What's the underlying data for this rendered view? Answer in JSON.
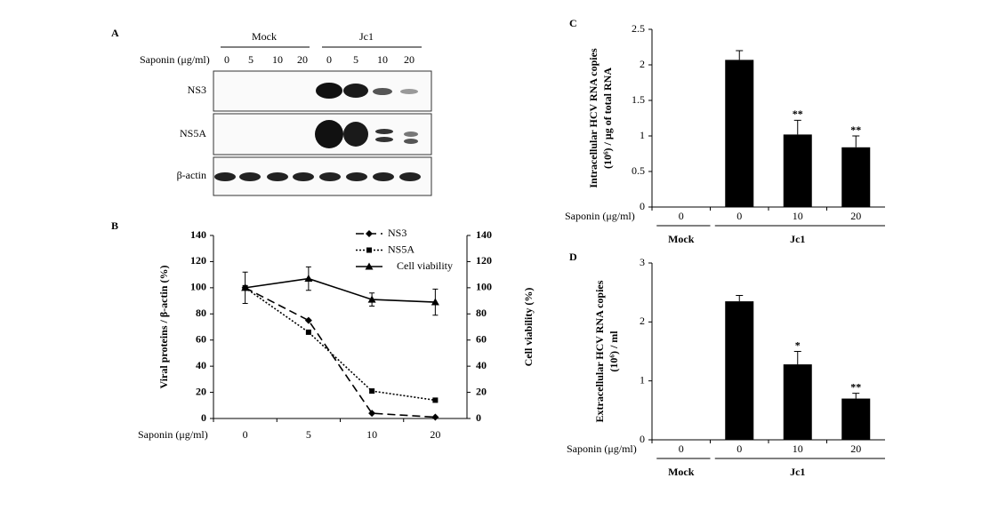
{
  "blot": {
    "label": "A",
    "groups": [
      "Mock",
      "Jc1"
    ],
    "treatment_label": "Saponin (μg/ml)",
    "lanes": [
      "0",
      "5",
      "10",
      "20",
      "0",
      "5",
      "10",
      "20"
    ],
    "rows": [
      "NS3",
      "NS5A",
      "β-actin"
    ]
  },
  "chart_data": [
    {
      "type": "line",
      "panel": "B",
      "xlabel": "Saponin (μg/ml)",
      "ylabel": "Viral proteins / β-actin (%)",
      "y2label": "Cell viability (%)",
      "categories": [
        "0",
        "5",
        "10",
        "20"
      ],
      "series": [
        {
          "name": "NS3",
          "color": "#000000",
          "marker": "diamond",
          "linestyle": "dashed",
          "values": [
            100,
            75,
            4,
            1
          ]
        },
        {
          "name": "NS5A",
          "color": "#000000",
          "marker": "square",
          "linestyle": "dotted",
          "values": [
            100,
            66,
            21,
            14
          ]
        },
        {
          "name": "Cell viability",
          "color": "#000000",
          "marker": "triangle",
          "linestyle": "solid",
          "axis": "y2",
          "values": [
            100,
            107,
            91,
            89
          ],
          "errors": [
            12,
            9,
            5,
            10
          ]
        }
      ],
      "ylim": [
        0,
        140
      ],
      "yticks": [
        0,
        20,
        40,
        60,
        80,
        100,
        120,
        140
      ],
      "y2lim": [
        0,
        140
      ],
      "y2ticks": [
        0,
        20,
        40,
        60,
        80,
        100,
        120,
        140
      ],
      "legend": "upper right"
    },
    {
      "type": "bar",
      "panel": "C",
      "xlabel": "Saponin (μg/ml)",
      "ylabel": [
        "Intracellular  HCV RNA copies",
        "(10⁶) / μg of  total RNA"
      ],
      "categories": [
        "0",
        "0",
        "10",
        "20"
      ],
      "category_groups": [
        "Mock",
        "Jc1",
        "Jc1",
        "Jc1"
      ],
      "values": [
        0,
        2.07,
        1.02,
        0.84
      ],
      "errors": [
        null,
        0.13,
        0.2,
        0.16
      ],
      "significance": [
        null,
        null,
        "**",
        "**"
      ],
      "color": "#000000",
      "ylim": [
        0,
        2.5
      ],
      "yticks": [
        0,
        0.5,
        1,
        1.5,
        2,
        2.5
      ]
    },
    {
      "type": "bar",
      "panel": "D",
      "xlabel": "Saponin (μg/ml)",
      "ylabel": [
        "Extracellular  HCV RNA copies",
        "(10⁶) / ml"
      ],
      "categories": [
        "0",
        "0",
        "10",
        "20"
      ],
      "category_groups": [
        "Mock",
        "Jc1",
        "Jc1",
        "Jc1"
      ],
      "values": [
        0,
        2.35,
        1.28,
        0.7
      ],
      "errors": [
        null,
        0.1,
        0.22,
        0.09
      ],
      "significance": [
        null,
        null,
        "*",
        "**"
      ],
      "color": "#000000",
      "ylim": [
        0,
        3
      ],
      "yticks": [
        0,
        1,
        2,
        3
      ]
    }
  ]
}
